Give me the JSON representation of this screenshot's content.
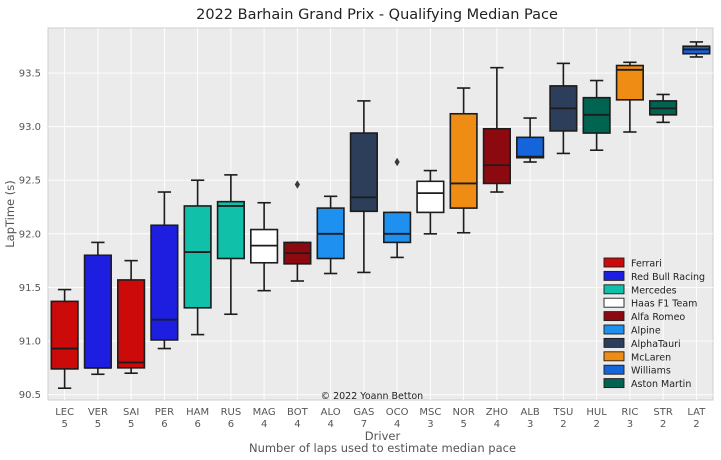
{
  "chart_data": {
    "type": "boxplot",
    "title": "2022 Barhain Grand Prix - Qualifying Median Pace",
    "xlabel": "Driver",
    "xlabel2": "Number of laps used to estimate median pace",
    "ylabel": "LapTime (s)",
    "ylim": [
      90.45,
      93.92
    ],
    "yticks": [
      90.5,
      91.0,
      91.5,
      92.0,
      92.5,
      93.0,
      93.5
    ],
    "grid": true,
    "legend_position": "bottom-right",
    "credit": "© 2022 Yoann Betton",
    "teams": [
      {
        "name": "Ferrari",
        "color": "#cc0a0a"
      },
      {
        "name": "Red Bull Racing",
        "color": "#1e1ee0"
      },
      {
        "name": "Mercedes",
        "color": "#10c0a8"
      },
      {
        "name": "Haas F1 Team",
        "color": "#ffffff"
      },
      {
        "name": "Alfa Romeo",
        "color": "#8c0a0f"
      },
      {
        "name": "Alpine",
        "color": "#1e90f0"
      },
      {
        "name": "AlphaTauri",
        "color": "#2c3e5a"
      },
      {
        "name": "McLaren",
        "color": "#ee8c14"
      },
      {
        "name": "Williams",
        "color": "#1464dc"
      },
      {
        "name": "Aston Martin",
        "color": "#006450"
      }
    ],
    "drivers": [
      {
        "driver": "LEC",
        "laps": "5",
        "team": 0,
        "whislo": 90.56,
        "q1": 90.74,
        "med": 90.93,
        "q3": 91.37,
        "whishi": 91.48,
        "fliers": []
      },
      {
        "driver": "VER",
        "laps": "5",
        "team": 1,
        "whislo": 90.69,
        "q1": 90.75,
        "med": 90.75,
        "q3": 91.8,
        "whishi": 91.92,
        "fliers": []
      },
      {
        "driver": "SAI",
        "laps": "5",
        "team": 0,
        "whislo": 90.7,
        "q1": 90.75,
        "med": 90.8,
        "q3": 91.57,
        "whishi": 91.75,
        "fliers": []
      },
      {
        "driver": "PER",
        "laps": "6",
        "team": 1,
        "whislo": 90.93,
        "q1": 91.01,
        "med": 91.2,
        "q3": 92.08,
        "whishi": 92.39,
        "fliers": []
      },
      {
        "driver": "HAM",
        "laps": "6",
        "team": 2,
        "whislo": 91.06,
        "q1": 91.31,
        "med": 91.83,
        "q3": 92.26,
        "whishi": 92.5,
        "fliers": []
      },
      {
        "driver": "RUS",
        "laps": "6",
        "team": 2,
        "whislo": 91.25,
        "q1": 91.77,
        "med": 92.26,
        "q3": 92.3,
        "whishi": 92.55,
        "fliers": []
      },
      {
        "driver": "MAG",
        "laps": "4",
        "team": 3,
        "whislo": 91.47,
        "q1": 91.73,
        "med": 91.89,
        "q3": 92.04,
        "whishi": 92.29,
        "fliers": []
      },
      {
        "driver": "BOT",
        "laps": "4",
        "team": 4,
        "whislo": 91.56,
        "q1": 91.72,
        "med": 91.82,
        "q3": 91.92,
        "whishi": 91.92,
        "fliers": [
          92.46
        ]
      },
      {
        "driver": "ALO",
        "laps": "4",
        "team": 5,
        "whislo": 91.63,
        "q1": 91.77,
        "med": 92.0,
        "q3": 92.24,
        "whishi": 92.35,
        "fliers": []
      },
      {
        "driver": "GAS",
        "laps": "7",
        "team": 6,
        "whislo": 91.64,
        "q1": 92.21,
        "med": 92.34,
        "q3": 92.94,
        "whishi": 93.24,
        "fliers": []
      },
      {
        "driver": "OCO",
        "laps": "4",
        "team": 5,
        "whislo": 91.78,
        "q1": 91.92,
        "med": 92.0,
        "q3": 92.2,
        "whishi": 92.2,
        "fliers": [
          92.67
        ]
      },
      {
        "driver": "MSC",
        "laps": "3",
        "team": 3,
        "whislo": 92.0,
        "q1": 92.2,
        "med": 92.38,
        "q3": 92.49,
        "whishi": 92.59,
        "fliers": []
      },
      {
        "driver": "NOR",
        "laps": "5",
        "team": 7,
        "whislo": 92.01,
        "q1": 92.24,
        "med": 92.47,
        "q3": 93.12,
        "whishi": 93.36,
        "fliers": []
      },
      {
        "driver": "ZHO",
        "laps": "4",
        "team": 4,
        "whislo": 92.39,
        "q1": 92.47,
        "med": 92.64,
        "q3": 92.98,
        "whishi": 93.55,
        "fliers": []
      },
      {
        "driver": "ALB",
        "laps": "3",
        "team": 8,
        "whislo": 92.67,
        "q1": 92.71,
        "med": 92.72,
        "q3": 92.9,
        "whishi": 93.08,
        "fliers": []
      },
      {
        "driver": "TSU",
        "laps": "2",
        "team": 6,
        "whislo": 92.75,
        "q1": 92.96,
        "med": 93.17,
        "q3": 93.38,
        "whishi": 93.59,
        "fliers": []
      },
      {
        "driver": "HUL",
        "laps": "2",
        "team": 9,
        "whislo": 92.78,
        "q1": 92.94,
        "med": 93.11,
        "q3": 93.27,
        "whishi": 93.43,
        "fliers": []
      },
      {
        "driver": "RIC",
        "laps": "3",
        "team": 7,
        "whislo": 92.95,
        "q1": 93.25,
        "med": 93.53,
        "q3": 93.57,
        "whishi": 93.6,
        "fliers": []
      },
      {
        "driver": "STR",
        "laps": "2",
        "team": 9,
        "whislo": 93.04,
        "q1": 93.11,
        "med": 93.17,
        "q3": 93.24,
        "whishi": 93.3,
        "fliers": []
      },
      {
        "driver": "LAT",
        "laps": "2",
        "team": 8,
        "whislo": 93.65,
        "q1": 93.68,
        "med": 93.72,
        "q3": 93.75,
        "whishi": 93.79,
        "fliers": []
      }
    ]
  }
}
